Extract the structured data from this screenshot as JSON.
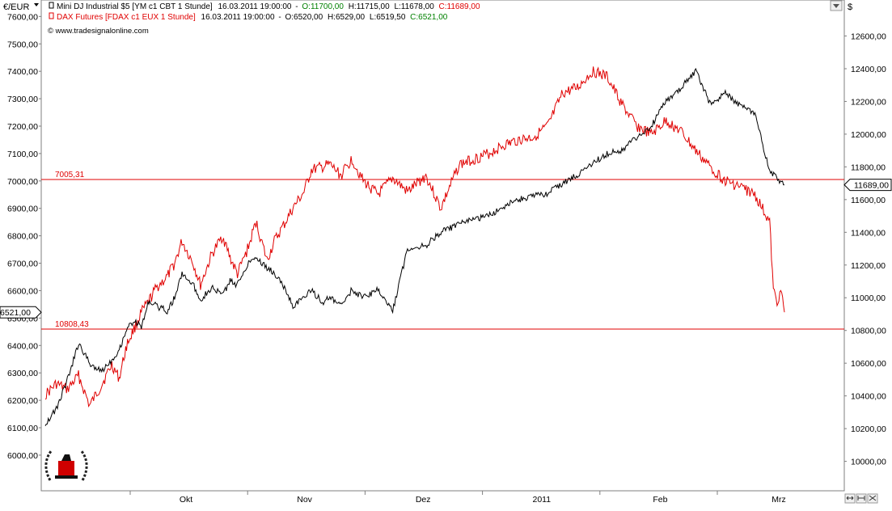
{
  "chart_data": {
    "type": "line",
    "currency_label": "€/EUR",
    "right_axis_unit": "$",
    "watermark": "© www.tradesignalonline.com",
    "legend": [
      {
        "name": "Mini DJ Industrial $5 [YM c1 CBT 1 Stunde]",
        "timestamp": "16.03.2011 19:00:00",
        "open": "O:11700,00",
        "high": "H:11715,00",
        "low": "L:11678,00",
        "close": "C:11689,00",
        "color": "#000000"
      },
      {
        "name": "DAX Futures [FDAX c1 EUX 1 Stunde]",
        "timestamp": "16.03.2011 19:00:00",
        "open": "O:6520,00",
        "high": "H:6529,00",
        "low": "L:6519,50",
        "close": "C:6521,00",
        "color": "#e00000"
      }
    ],
    "left_axis": {
      "ticks": [
        "6000,00",
        "6100,00",
        "6200,00",
        "6300,00",
        "6400,00",
        "6500,00",
        "6600,00",
        "6700,00",
        "6800,00",
        "6900,00",
        "7000,00",
        "7100,00",
        "7200,00",
        "7300,00",
        "7400,00",
        "7500,00",
        "7600,00"
      ],
      "range": [
        5870,
        7660
      ]
    },
    "right_axis": {
      "ticks": [
        "10000,00",
        "10200,00",
        "10400,00",
        "10600,00",
        "10800,00",
        "11000,00",
        "11200,00",
        "11400,00",
        "11600,00",
        "11800,00",
        "12000,00",
        "12200,00",
        "12400,00",
        "12600,00"
      ],
      "range": [
        9820,
        12820
      ]
    },
    "x_labels": [
      "Okt",
      "Nov",
      "Dez",
      "2011",
      "Feb",
      "Mrz"
    ],
    "horizontal_lines": [
      {
        "label": "7005,31",
        "value": 7005.31,
        "color": "#e00000"
      },
      {
        "label": "10808,43",
        "value": 10808.43,
        "color": "#e00000"
      }
    ],
    "last_price_tags": {
      "right": "11689,00",
      "left": "6521,00"
    },
    "series": [
      {
        "name": "Mini DJ Industrial $5",
        "axis": "right",
        "color": "#000000",
        "x": [
          0,
          3,
          6,
          9,
          12,
          15,
          18,
          20,
          22,
          24,
          26,
          28,
          30,
          33,
          35,
          37,
          40,
          42,
          45,
          48,
          50,
          52,
          55,
          57,
          60,
          62,
          65,
          67,
          70,
          72,
          75,
          77,
          80,
          83,
          86,
          90,
          94,
          98,
          103,
          107,
          112,
          116,
          120,
          124,
          128,
          132,
          136,
          140,
          144,
          148,
          152,
          156,
          160,
          164,
          168,
          172,
          176,
          180,
          184,
          188,
          192,
          196,
          200
        ],
        "values": [
          10230,
          10320,
          10500,
          10720,
          10600,
          10550,
          10620,
          10680,
          10810,
          10860,
          10820,
          10980,
          10950,
          10920,
          11000,
          11150,
          11080,
          10990,
          11060,
          11020,
          11100,
          11080,
          11220,
          11250,
          11180,
          11150,
          11050,
          10950,
          11000,
          11050,
          10970,
          11000,
          10950,
          11050,
          11000,
          11050,
          10920,
          11300,
          11320,
          11400,
          11450,
          11480,
          11500,
          11560,
          11600,
          11620,
          11640,
          11700,
          11750,
          11820,
          11880,
          11900,
          11980,
          12050,
          12200,
          12280,
          12390,
          12180,
          12250,
          12180,
          12120,
          11780,
          11690
        ]
      },
      {
        "name": "DAX Futures",
        "axis": "left",
        "color": "#e00000",
        "x": [
          0,
          3,
          6,
          9,
          12,
          15,
          18,
          20,
          22,
          24,
          26,
          28,
          30,
          33,
          35,
          37,
          40,
          42,
          45,
          48,
          50,
          52,
          55,
          57,
          60,
          62,
          65,
          67,
          70,
          72,
          75,
          77,
          80,
          83,
          86,
          90,
          94,
          98,
          103,
          107,
          112,
          116,
          120,
          124,
          128,
          132,
          136,
          140,
          144,
          148,
          152,
          156,
          160,
          164,
          168,
          172,
          176,
          180,
          184,
          188,
          192,
          196,
          197,
          198,
          199,
          200
        ],
        "values": [
          6220,
          6260,
          6240,
          6290,
          6180,
          6250,
          6330,
          6280,
          6400,
          6460,
          6520,
          6560,
          6610,
          6650,
          6700,
          6780,
          6700,
          6620,
          6730,
          6800,
          6720,
          6660,
          6760,
          6850,
          6710,
          6780,
          6850,
          6900,
          6960,
          7040,
          7050,
          7060,
          7020,
          7080,
          7000,
          6950,
          7010,
          6960,
          7020,
          6900,
          7060,
          7080,
          7100,
          7130,
          7150,
          7160,
          7200,
          7320,
          7340,
          7400,
          7380,
          7280,
          7200,
          7170,
          7220,
          7180,
          7110,
          7050,
          7000,
          6980,
          6950,
          6850,
          6600,
          6560,
          6600,
          6521
        ]
      }
    ]
  }
}
